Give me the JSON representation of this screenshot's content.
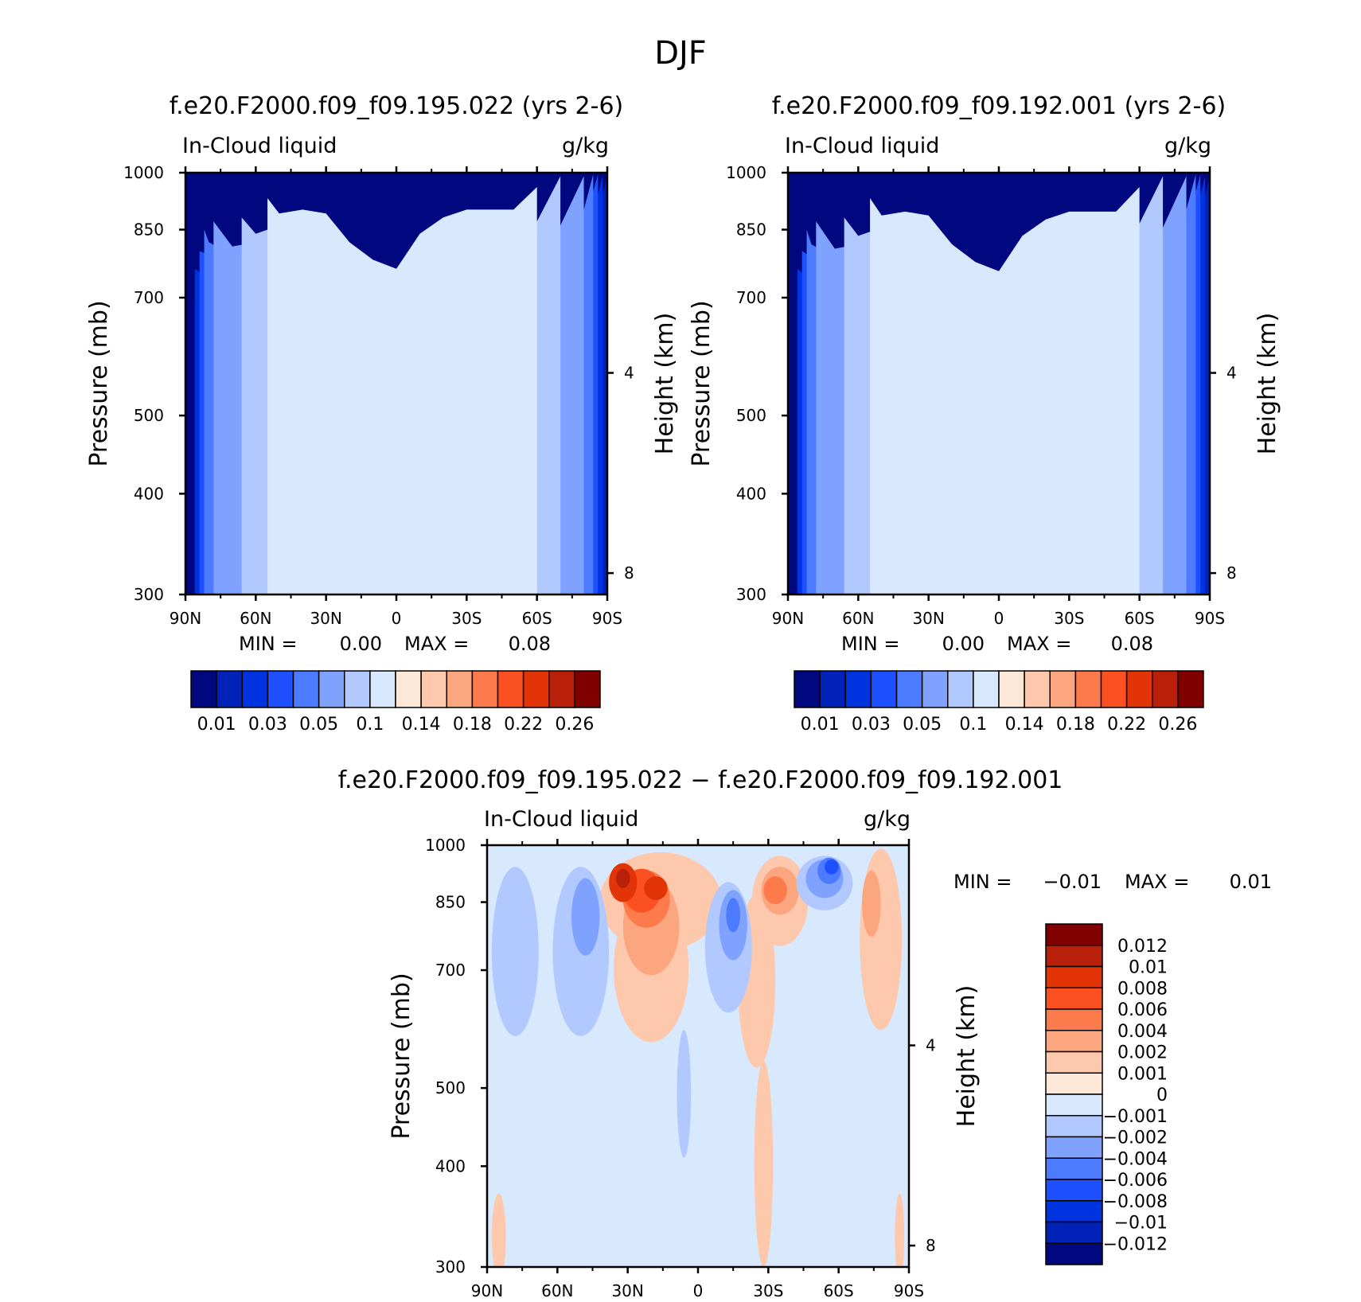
{
  "figure": {
    "title": "DJF"
  },
  "chart_data": [
    {
      "type": "heatmap",
      "title": "f.e20.F2000.f09_f09.195.022 (yrs 2-6)",
      "variable": "In-Cloud liquid",
      "units": "g/kg",
      "ylabel": "Pressure (mb)",
      "y2label": "Height (km)",
      "x_ticks": [
        "90N",
        "60N",
        "30N",
        "0",
        "30S",
        "60S",
        "90S"
      ],
      "y_ticks": [
        "300",
        "400",
        "500",
        "700",
        "850",
        "1000"
      ],
      "y2_ticks": [
        "8",
        "4"
      ],
      "ylim": [
        1000,
        300
      ],
      "min_label": "MIN =",
      "min_value": "0.00",
      "max_label": "MAX =",
      "max_value": "0.08",
      "colorbar_labels": [
        "0.01",
        "0.03",
        "0.05",
        "0.1",
        "0.14",
        "0.18",
        "0.22",
        "0.26"
      ],
      "colorbar_colors": [
        "#00077f",
        "#0022b8",
        "#0033e0",
        "#1e50ff",
        "#4d7bff",
        "#7fa2ff",
        "#b2c9ff",
        "#d8e8fd",
        "#fde8d8",
        "#fdc8ac",
        "#fca67f",
        "#fc7a4c",
        "#fa5022",
        "#e33408",
        "#b8200a",
        "#800000"
      ],
      "bands_top_pressure": [
        {
          "level": "0.01",
          "lat": [
            -90,
            -80,
            -70,
            -60,
            -50,
            -40,
            -30,
            -20,
            -10,
            0,
            10,
            20,
            30,
            40,
            50,
            60,
            70,
            80,
            86
          ],
          "p": [
            990,
            760,
            720,
            680,
            690,
            700,
            710,
            705,
            580,
            515,
            520,
            545,
            750,
            740,
            620,
            560,
            580,
            680,
            690
          ]
        },
        {
          "level": "0.02",
          "lat": [
            -88,
            -80,
            -70,
            -60,
            -50,
            -40,
            -30,
            -20,
            -10,
            0,
            10,
            20,
            30,
            40,
            50,
            60,
            70,
            80,
            86
          ],
          "p": [
            990,
            800,
            760,
            740,
            745,
            755,
            760,
            740,
            630,
            545,
            550,
            580,
            790,
            790,
            740,
            700,
            700,
            740,
            760
          ]
        },
        {
          "level": "0.03",
          "lat": [
            -86,
            -80,
            -70,
            -60,
            -50,
            -40,
            -30,
            -20,
            -10,
            0,
            10,
            20,
            30,
            40,
            50,
            60,
            70,
            80,
            84
          ],
          "p": [
            995,
            860,
            790,
            780,
            780,
            790,
            790,
            775,
            660,
            570,
            575,
            615,
            820,
            830,
            800,
            770,
            760,
            790,
            800
          ]
        },
        {
          "level": "0.04",
          "lat": [
            -84,
            -80,
            -70,
            -60,
            -50,
            -40,
            -30,
            -20,
            -10,
            0,
            10,
            20,
            30,
            40,
            50,
            60,
            70,
            80,
            82
          ],
          "p": [
            995,
            900,
            820,
            810,
            810,
            815,
            810,
            810,
            690,
            590,
            600,
            640,
            830,
            840,
            820,
            800,
            790,
            820,
            850
          ]
        },
        {
          "level": "0.05",
          "lat": [
            -80,
            -70,
            -60,
            -50,
            -40,
            -30,
            -20,
            -10,
            0,
            10,
            20,
            30,
            40,
            50,
            60,
            70,
            78
          ],
          "p": [
            990,
            860,
            840,
            835,
            840,
            840,
            840,
            720,
            630,
            640,
            680,
            840,
            850,
            840,
            820,
            810,
            870
          ]
        },
        {
          "level": "0.06",
          "lat": [
            -70,
            -60,
            -50,
            -40,
            -30,
            -20,
            -10,
            0,
            10,
            20,
            30,
            40,
            50,
            60,
            66
          ],
          "p": [
            990,
            870,
            855,
            860,
            860,
            855,
            760,
            670,
            690,
            720,
            860,
            870,
            860,
            840,
            880
          ]
        },
        {
          "level": "0.07",
          "lat": [
            -60,
            -50,
            -40,
            -30,
            -20,
            -10,
            0,
            10,
            20,
            30,
            40,
            50,
            55
          ],
          "p": [
            960,
            900,
            900,
            900,
            880,
            840,
            760,
            780,
            820,
            890,
            900,
            890,
            930
          ]
        }
      ]
    },
    {
      "type": "heatmap",
      "title": "f.e20.F2000.f09_f09.192.001 (yrs 2-6)",
      "variable": "In-Cloud liquid",
      "units": "g/kg",
      "ylabel": "Pressure (mb)",
      "y2label": "Height (km)",
      "x_ticks": [
        "90N",
        "60N",
        "30N",
        "0",
        "30S",
        "60S",
        "90S"
      ],
      "y_ticks": [
        "300",
        "400",
        "500",
        "700",
        "850",
        "1000"
      ],
      "y2_ticks": [
        "8",
        "4"
      ],
      "ylim": [
        1000,
        300
      ],
      "min_label": "MIN =",
      "min_value": "0.00",
      "max_label": "MAX =",
      "max_value": "0.08",
      "colorbar_labels": [
        "0.01",
        "0.03",
        "0.05",
        "0.1",
        "0.14",
        "0.18",
        "0.22",
        "0.26"
      ],
      "colorbar_colors": [
        "#00077f",
        "#0022b8",
        "#0033e0",
        "#1e50ff",
        "#4d7bff",
        "#7fa2ff",
        "#b2c9ff",
        "#d8e8fd",
        "#fde8d8",
        "#fdc8ac",
        "#fca67f",
        "#fc7a4c",
        "#fa5022",
        "#e33408",
        "#b8200a",
        "#800000"
      ],
      "bands_top_pressure": [
        {
          "level": "0.01",
          "lat": [
            -90,
            -80,
            -70,
            -60,
            -50,
            -40,
            -30,
            -20,
            -10,
            0,
            10,
            20,
            30,
            40,
            50,
            60,
            70,
            80,
            86
          ],
          "p": [
            990,
            760,
            715,
            675,
            685,
            700,
            705,
            700,
            575,
            510,
            515,
            540,
            750,
            740,
            615,
            555,
            575,
            675,
            690
          ]
        },
        {
          "level": "0.02",
          "lat": [
            -88,
            -80,
            -70,
            -60,
            -50,
            -40,
            -30,
            -20,
            -10,
            0,
            10,
            20,
            30,
            40,
            50,
            60,
            70,
            80,
            86
          ],
          "p": [
            990,
            800,
            755,
            735,
            740,
            750,
            755,
            735,
            625,
            540,
            545,
            575,
            790,
            790,
            735,
            695,
            695,
            735,
            760
          ]
        },
        {
          "level": "0.03",
          "lat": [
            -86,
            -80,
            -70,
            -60,
            -50,
            -40,
            -30,
            -20,
            -10,
            0,
            10,
            20,
            30,
            40,
            50,
            60,
            70,
            80,
            84
          ],
          "p": [
            995,
            860,
            785,
            775,
            775,
            785,
            785,
            770,
            655,
            565,
            570,
            610,
            820,
            830,
            795,
            765,
            755,
            785,
            800
          ]
        },
        {
          "level": "0.04",
          "lat": [
            -84,
            -80,
            -70,
            -60,
            -50,
            -40,
            -30,
            -20,
            -10,
            0,
            10,
            20,
            30,
            40,
            50,
            60,
            70,
            80,
            82
          ],
          "p": [
            995,
            900,
            815,
            805,
            805,
            810,
            805,
            805,
            685,
            585,
            595,
            635,
            830,
            840,
            815,
            795,
            785,
            815,
            850
          ]
        },
        {
          "level": "0.05",
          "lat": [
            -80,
            -70,
            -60,
            -50,
            -40,
            -30,
            -20,
            -10,
            0,
            10,
            20,
            30,
            40,
            50,
            60,
            70,
            78
          ],
          "p": [
            990,
            855,
            835,
            830,
            835,
            835,
            835,
            715,
            625,
            635,
            675,
            835,
            845,
            835,
            815,
            805,
            870
          ]
        },
        {
          "level": "0.06",
          "lat": [
            -70,
            -60,
            -50,
            -40,
            -30,
            -20,
            -10,
            0,
            10,
            20,
            30,
            40,
            50,
            60,
            66
          ],
          "p": [
            990,
            865,
            850,
            855,
            855,
            850,
            755,
            665,
            685,
            715,
            855,
            865,
            855,
            835,
            880
          ]
        },
        {
          "level": "0.07",
          "lat": [
            -60,
            -50,
            -40,
            -30,
            -20,
            -10,
            0,
            10,
            20,
            30,
            40,
            50,
            55
          ],
          "p": [
            960,
            895,
            895,
            895,
            875,
            835,
            755,
            775,
            815,
            885,
            895,
            885,
            930
          ]
        }
      ]
    },
    {
      "type": "heatmap",
      "title": "f.e20.F2000.f09_f09.195.022 − f.e20.F2000.f09_f09.192.001",
      "variable": "In-Cloud liquid",
      "units": "g/kg",
      "ylabel": "Pressure (mb)",
      "y2label": "Height (km)",
      "x_ticks": [
        "90N",
        "60N",
        "30N",
        "0",
        "30S",
        "60S",
        "90S"
      ],
      "y_ticks": [
        "300",
        "400",
        "500",
        "700",
        "850",
        "1000"
      ],
      "y2_ticks": [
        "8",
        "4"
      ],
      "ylim": [
        1000,
        300
      ],
      "min_label": "MIN =",
      "min_value": "−0.01",
      "max_label": "MAX =",
      "max_value": "0.01",
      "colorbar_labels": [
        "0.012",
        "0.01",
        "0.008",
        "0.006",
        "0.004",
        "0.002",
        "0.001",
        "0",
        "−0.001",
        "−0.002",
        "−0.004",
        "−0.006",
        "−0.008",
        "−0.01",
        "−0.012"
      ],
      "colorbar_colors": [
        "#800000",
        "#b8200a",
        "#e33408",
        "#fa5022",
        "#fc7a4c",
        "#fca67f",
        "#fdc8ac",
        "#fde8d8",
        "#d8e8fd",
        "#b2c9ff",
        "#7fa2ff",
        "#4d7bff",
        "#1e50ff",
        "#0033e0",
        "#0022b8",
        "#00077f"
      ],
      "background_level": "−0.001",
      "blobs": [
        {
          "level": "0.001",
          "lat": -28,
          "p": 420,
          "dlat": 4,
          "dp": 120
        },
        {
          "level": "0.001",
          "lat": -25,
          "p": 700,
          "dlat": 8,
          "dp": 170
        },
        {
          "level": "0.001",
          "lat": 20,
          "p": 720,
          "dlat": 16,
          "dp": 150
        },
        {
          "level": "0.001",
          "lat": 16,
          "p": 860,
          "dlat": 26,
          "dp": 120
        },
        {
          "level": "0.001",
          "lat": -78,
          "p": 790,
          "dlat": 9,
          "dp": 200
        },
        {
          "level": "0.001",
          "lat": -35,
          "p": 860,
          "dlat": 12,
          "dp": 110
        },
        {
          "level": "0.001",
          "lat": 85,
          "p": 330,
          "dlat": 3,
          "dp": 40
        },
        {
          "level": "0.001",
          "lat": -86,
          "p": 330,
          "dlat": 2,
          "dp": 40
        },
        {
          "level": "0.002",
          "lat": 20,
          "p": 800,
          "dlat": 12,
          "dp": 110
        },
        {
          "level": "0.002",
          "lat": -35,
          "p": 880,
          "dlat": 8,
          "dp": 60
        },
        {
          "level": "0.002",
          "lat": -74,
          "p": 850,
          "dlat": 4,
          "dp": 80
        },
        {
          "level": "0.004",
          "lat": 22,
          "p": 860,
          "dlat": 10,
          "dp": 70
        },
        {
          "level": "0.004",
          "lat": -33,
          "p": 880,
          "dlat": 5,
          "dp": 35
        },
        {
          "level": "0.006",
          "lat": 24,
          "p": 880,
          "dlat": 8,
          "dp": 55
        },
        {
          "level": "0.008",
          "lat": 32,
          "p": 900,
          "dlat": 6,
          "dp": 50
        },
        {
          "level": "0.008",
          "lat": 18,
          "p": 885,
          "dlat": 5,
          "dp": 30
        },
        {
          "level": "0.01",
          "lat": 32,
          "p": 910,
          "dlat": 3,
          "dp": 25
        },
        {
          "level": "−0.002",
          "lat": -54,
          "p": 900,
          "dlat": 12,
          "dp": 70
        },
        {
          "level": "−0.002",
          "lat": -13,
          "p": 760,
          "dlat": 10,
          "dp": 140
        },
        {
          "level": "−0.002",
          "lat": 50,
          "p": 760,
          "dlat": 12,
          "dp": 180
        },
        {
          "level": "−0.002",
          "lat": 78,
          "p": 760,
          "dlat": 10,
          "dp": 180
        },
        {
          "level": "−0.002",
          "lat": 6,
          "p": 500,
          "dlat": 3,
          "dp": 90
        },
        {
          "level": "−0.004",
          "lat": -54,
          "p": 910,
          "dlat": 8,
          "dp": 50
        },
        {
          "level": "−0.004",
          "lat": -15,
          "p": 800,
          "dlat": 6,
          "dp": 80
        },
        {
          "level": "−0.004",
          "lat": 48,
          "p": 820,
          "dlat": 6,
          "dp": 90
        },
        {
          "level": "−0.006",
          "lat": -56,
          "p": 930,
          "dlat": 5,
          "dp": 35
        },
        {
          "level": "−0.006",
          "lat": -15,
          "p": 820,
          "dlat": 3,
          "dp": 40
        },
        {
          "level": "−0.008",
          "lat": -57,
          "p": 940,
          "dlat": 3,
          "dp": 20
        }
      ]
    }
  ]
}
